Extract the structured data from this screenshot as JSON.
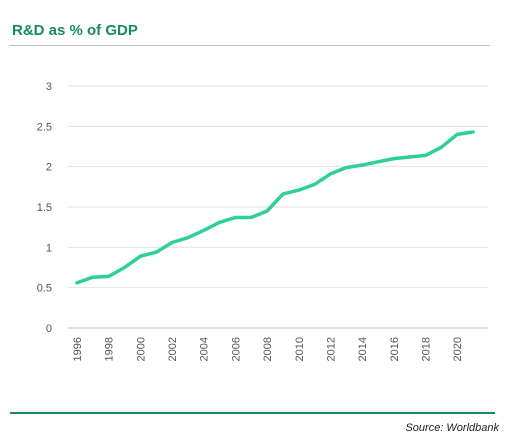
{
  "header": {
    "title": "R&D as % of GDP"
  },
  "footer": {
    "source": "Source: Worldbank"
  },
  "colors": {
    "accent": "#1a8a63",
    "line": "#2ecf9c",
    "grid": "#e2e2e2"
  },
  "chart_data": {
    "type": "line",
    "title": "R&D as % of GDP",
    "xlabel": "",
    "ylabel": "",
    "xlim": [
      1996,
      2021
    ],
    "ylim": [
      0,
      3
    ],
    "y_ticks": [
      "0",
      "0.5",
      "1",
      "1.5",
      "2",
      "2.5",
      "3"
    ],
    "x_ticks": [
      "1996",
      "1998",
      "2000",
      "2002",
      "2004",
      "2006",
      "2008",
      "2010",
      "2012",
      "2014",
      "2016",
      "2018",
      "2020"
    ],
    "grid": true,
    "legend": "none",
    "series": [
      {
        "x": [
          1996,
          1997,
          1998,
          1999,
          2000,
          2001,
          2002,
          2003,
          2004,
          2005,
          2006,
          2007,
          2008,
          2009,
          2010,
          2011,
          2012,
          2013,
          2014,
          2015,
          2016,
          2017,
          2018,
          2019,
          2020,
          2021
        ],
        "values": [
          0.56,
          0.63,
          0.64,
          0.75,
          0.89,
          0.94,
          1.06,
          1.12,
          1.21,
          1.31,
          1.37,
          1.37,
          1.45,
          1.66,
          1.71,
          1.78,
          1.91,
          1.99,
          2.02,
          2.06,
          2.1,
          2.12,
          2.14,
          2.24,
          2.4,
          2.43
        ]
      }
    ]
  }
}
